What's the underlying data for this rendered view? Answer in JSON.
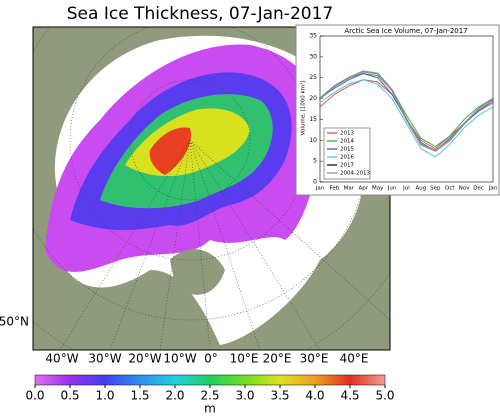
{
  "title": "Sea Ice Thickness, 07-Jan-2017",
  "map": {
    "lat_label": "50°N",
    "lon_labels": [
      "40°W",
      "30°W",
      "20°W",
      "10°W",
      "0°",
      "10°E",
      "20°E",
      "30°E",
      "40°E"
    ]
  },
  "colorbar": {
    "unit": "m",
    "lim": [
      0,
      5
    ],
    "ticks": [
      {
        "value": 0,
        "label": "0.0"
      },
      0.5,
      {
        "value": 1,
        "label": "1.0"
      },
      1.5,
      {
        "value": 2,
        "label": "2.0"
      },
      2.5,
      {
        "value": 3,
        "label": "3.0"
      },
      3.5,
      {
        "value": 4,
        "label": "4.0"
      },
      4.5,
      {
        "value": 5,
        "label": "5.0"
      }
    ],
    "colors": [
      "#e070f0",
      "#9a30f0",
      "#4040f0",
      "#3090f0",
      "#20d0e0",
      "#20d060",
      "#70e020",
      "#e0e020",
      "#f0a020",
      "#e03020",
      "#f0a090"
    ]
  },
  "chart_data": {
    "type": "line",
    "title": "Arctic Sea Ice Volume, 07-Jan-2017",
    "ylabel": "Volume, [1000 km³]",
    "categories": [
      "Jan",
      "Feb",
      "Mar",
      "Apr",
      "May",
      "Jun",
      "Jul",
      "Aug",
      "Sep",
      "Oct",
      "Nov",
      "Dec",
      "Jan"
    ],
    "ylim": [
      0,
      35
    ],
    "yticks": [
      0,
      5,
      10,
      15,
      20,
      25,
      30,
      35
    ],
    "legend": "lower left",
    "series": [
      {
        "name": "2013",
        "color": "#e04040",
        "values": [
          18,
          21,
          23,
          24.5,
          24,
          21,
          15,
          10,
          8,
          11,
          14,
          17,
          19
        ]
      },
      {
        "name": "2014",
        "color": "#30a030",
        "values": [
          20,
          23,
          25,
          26,
          25.5,
          22,
          16,
          10.5,
          8.5,
          11,
          15,
          18,
          20
        ]
      },
      {
        "name": "2015",
        "color": "#3050d0",
        "values": [
          20,
          22.5,
          24.5,
          26,
          25,
          21,
          15,
          9.5,
          7.5,
          10.5,
          14,
          17,
          19.5
        ]
      },
      {
        "name": "2016",
        "color": "#40c0d0",
        "values": [
          19,
          21.5,
          23.5,
          24.5,
          23.5,
          20,
          14,
          8,
          6,
          9,
          13,
          16,
          18
        ]
      },
      {
        "name": "2017",
        "color": "#000000",
        "values": [
          18.5,
          null,
          null,
          null,
          null,
          null,
          null,
          null,
          null,
          null,
          null,
          null,
          null
        ]
      },
      {
        "name": "2004-2013",
        "color": "#888888",
        "values": [
          20,
          23,
          25,
          26.5,
          26,
          22,
          15,
          9,
          7.5,
          10,
          14,
          17.5,
          20
        ]
      }
    ]
  }
}
